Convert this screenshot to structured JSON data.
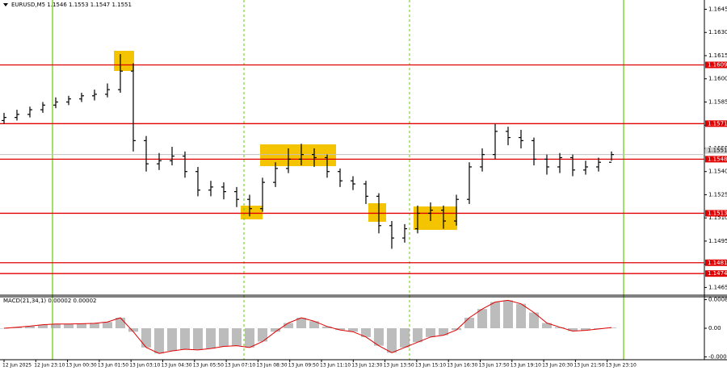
{
  "chart_data": {
    "type": "candlestick",
    "title": "EURUSD,M5  1.1546 1.1553 1.1547 1.1551",
    "open": [
      1.1573,
      1.1575,
      1.1577,
      1.158,
      1.1583,
      1.1585,
      1.1587,
      1.1589,
      1.159,
      1.1593,
      1.1605,
      1.156,
      1.1545,
      1.1547,
      1.155,
      1.154,
      1.1528,
      1.153,
      1.1527,
      1.1522,
      1.1516,
      1.1533,
      1.1542,
      1.1548,
      1.1551,
      1.1549,
      1.154,
      1.1534,
      1.1532,
      1.1524,
      1.1505,
      1.1497,
      1.1503,
      1.1513,
      1.1515,
      1.1508,
      1.1522,
      1.1543,
      1.1551,
      1.1566,
      1.1562,
      1.156,
      1.1548,
      1.1543,
      1.1549,
      1.1541,
      1.1543,
      1.1546
    ],
    "high": [
      1.1578,
      1.158,
      1.1582,
      1.1585,
      1.1588,
      1.1589,
      1.1591,
      1.1593,
      1.1597,
      1.1616,
      1.161,
      1.1563,
      1.1552,
      1.1556,
      1.1553,
      1.1543,
      1.1534,
      1.1533,
      1.153,
      1.1525,
      1.1536,
      1.1546,
      1.1555,
      1.1558,
      1.1555,
      1.1551,
      1.1542,
      1.1537,
      1.1534,
      1.1526,
      1.1508,
      1.1506,
      1.1518,
      1.152,
      1.1518,
      1.1525,
      1.1546,
      1.1555,
      1.1571,
      1.1569,
      1.1567,
      1.1562,
      1.1551,
      1.1552,
      1.1551,
      1.1547,
      1.1549,
      1.1553
    ],
    "low": [
      1.1571,
      1.1573,
      1.1575,
      1.1578,
      1.1581,
      1.1583,
      1.1585,
      1.1586,
      1.1588,
      1.1591,
      1.1553,
      1.154,
      1.1541,
      1.1544,
      1.1536,
      1.1524,
      1.1524,
      1.1522,
      1.1517,
      1.1511,
      1.1514,
      1.153,
      1.1539,
      1.1544,
      1.1543,
      1.1536,
      1.153,
      1.1528,
      1.1519,
      1.15,
      1.149,
      1.1494,
      1.15,
      1.1508,
      1.1503,
      1.1505,
      1.1519,
      1.154,
      1.1548,
      1.1557,
      1.1555,
      1.1544,
      1.1538,
      1.1539,
      1.1537,
      1.1538,
      1.154,
      1.1547
    ],
    "close": [
      1.1575,
      1.1577,
      1.158,
      1.1583,
      1.1585,
      1.1587,
      1.1589,
      1.159,
      1.1593,
      1.1605,
      1.156,
      1.1545,
      1.1547,
      1.155,
      1.154,
      1.1528,
      1.153,
      1.1527,
      1.1522,
      1.1516,
      1.1533,
      1.1542,
      1.1548,
      1.1551,
      1.1549,
      1.154,
      1.1534,
      1.1532,
      1.1524,
      1.1505,
      1.1497,
      1.1503,
      1.1513,
      1.1515,
      1.1508,
      1.1522,
      1.1543,
      1.1551,
      1.1566,
      1.1562,
      1.156,
      1.1548,
      1.1543,
      1.1549,
      1.1541,
      1.1543,
      1.1546,
      1.1551
    ],
    "color": "#000000",
    "ylim": [
      1.146,
      1.1651
    ],
    "yticks": [
      1.1645,
      {
        "value": 1.163,
        "label": "1.1630"
      },
      1.1615,
      {
        "value": 1.16,
        "label": "1.1600"
      },
      1.1585,
      {
        "value": 1.157,
        "label": "1.1570"
      },
      1.1555,
      {
        "value": 1.154,
        "label": "1.1540"
      },
      1.1525,
      {
        "value": 1.151,
        "label": "1.1510"
      },
      1.1495,
      {
        "value": 1.148,
        "label": "1.1480"
      },
      1.1465
    ],
    "levels": [
      1.1609,
      1.1571,
      1.1548,
      1.1513,
      1.1481,
      1.1474
    ],
    "level_color": "#e00000",
    "current_price": 1.1551,
    "time_labels": [
      "12 Jun 2025",
      "12 Jun 23:10",
      "13 Jun 00:30",
      "13 Jun 01:50",
      "13 Jun 03:10",
      "13 Jun 04:30",
      "13 Jun 05:50",
      "13 Jun 07:10",
      "13 Jun 08:30",
      "13 Jun 09:50",
      "13 Jun 11:10",
      "13 Jun 12:30",
      "13 Jun 13:50",
      "13 Jun 15:10",
      "13 Jun 16:30",
      "13 Jun 17:50",
      "13 Jun 19:10",
      "13 Jun 20:30",
      "13 Jun 21:50",
      "13 Jun 23:10"
    ],
    "macd": {
      "label": "MACD(21,34,1) 0.00002 0.00002",
      "values": [
        0,
        3e-05,
        6e-05,
        0.0001,
        0.00012,
        0.00012,
        0.00013,
        0.00014,
        0.00018,
        0.0003,
        -0.0001,
        -0.00055,
        -0.00072,
        -0.00065,
        -0.0006,
        -0.00062,
        -0.00058,
        -0.00052,
        -0.0005,
        -0.00055,
        -0.00038,
        -0.0001,
        0.00015,
        0.0003,
        0.0002,
        5e-05,
        -5e-05,
        -0.0001,
        -0.00025,
        -0.0005,
        -0.0007,
        -0.00055,
        -0.0004,
        -0.00025,
        -0.0002,
        -5e-05,
        0.0003,
        0.00055,
        0.00075,
        0.0008,
        0.0007,
        0.00045,
        0.00015,
        3e-05,
        -8e-05,
        -6e-05,
        -2e-05,
        2e-05
      ],
      "hist_color": "#a0a0a0",
      "line_color": "#e00000",
      "ylim": [
        -0.0009,
        0.0009
      ],
      "yticks": [
        0.00082,
        {
          "value": 0,
          "label": "0.00"
        },
        -0.00082
      ]
    }
  }
}
